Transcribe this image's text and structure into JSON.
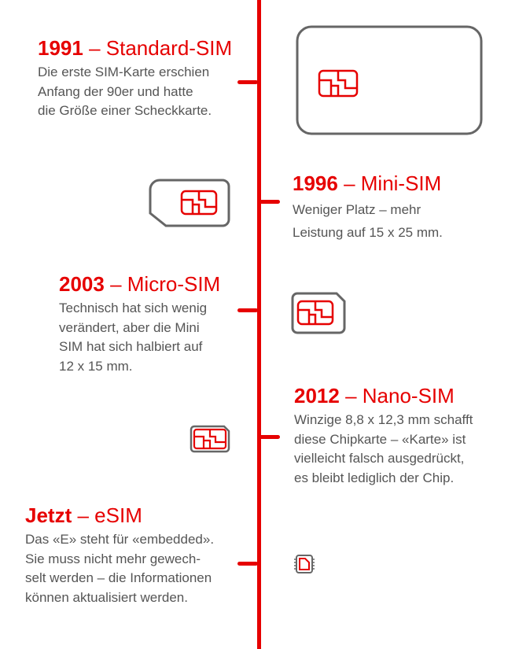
{
  "accent": "#e60000",
  "entries": [
    {
      "year": "1991",
      "sep": " – ",
      "name": "Standard-SIM",
      "lines": [
        "Die erste SIM-Karte erschien",
        "Anfang der 90er und hatte",
        "die Größe einer Scheckkarte."
      ],
      "icon": "standard-sim-card-icon"
    },
    {
      "year": "1996",
      "sep": " – ",
      "name": "Mini-SIM",
      "lines": [
        "Weniger Platz – mehr",
        "Leistung auf 15 x 25 mm."
      ],
      "icon": "mini-sim-icon"
    },
    {
      "year": "2003",
      "sep": " – ",
      "name": "Micro-SIM",
      "lines": [
        "Technisch hat sich wenig",
        "verändert, aber die Mini",
        "SIM hat sich halbiert auf",
        "12 x 15 mm."
      ],
      "icon": "micro-sim-icon"
    },
    {
      "year": "2012",
      "sep": " – ",
      "name": "Nano-SIM",
      "lines": [
        "Winzige 8,8 x 12,3 mm schafft",
        "diese Chipkarte – «Karte» ist",
        "vielleicht falsch ausgedrückt,",
        "es bleibt lediglich der Chip."
      ],
      "icon": "nano-sim-icon"
    },
    {
      "year": "Jetzt",
      "sep": " – ",
      "name": "eSIM",
      "lines": [
        "Das «E» steht für «embedded».",
        "Sie muss nicht mehr gewech-",
        "selt werden – die Informationen",
        "können aktualisiert werden."
      ],
      "icon": "esim-chip-icon"
    }
  ]
}
